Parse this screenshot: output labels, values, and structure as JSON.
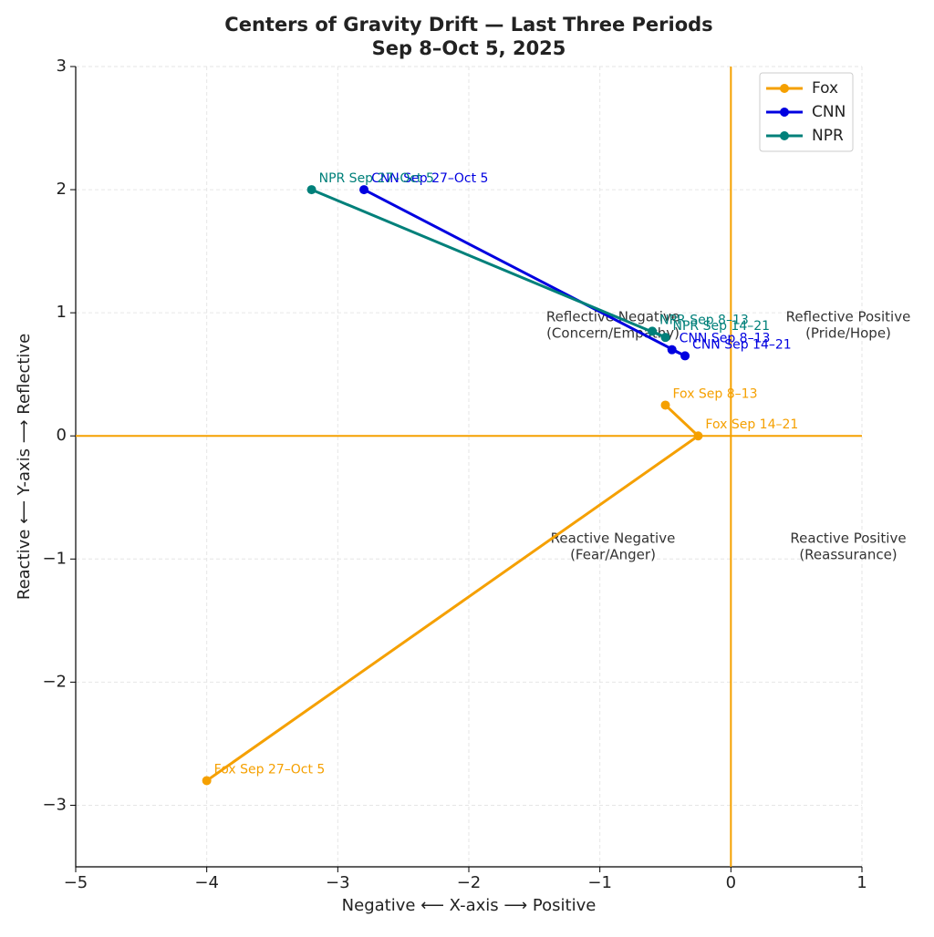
{
  "chart_data": {
    "type": "line",
    "title": "Centers of Gravity Drift — Last Three Periods",
    "subtitle": "Sep 8–Oct 5, 2025",
    "x_label": "Negative ⟵ X-axis ⟶ Positive",
    "y_label": "Reactive ⟵ Y-axis ⟶ Reflective",
    "xlim": [
      -5,
      1
    ],
    "ylim": [
      -3.5,
      3
    ],
    "xticks": [
      {
        "value": -5,
        "label": "−5"
      },
      {
        "value": -4,
        "label": "−4"
      },
      {
        "value": -3,
        "label": "−3"
      },
      {
        "value": -2,
        "label": "−2"
      },
      {
        "value": -1,
        "label": "−1"
      },
      0,
      1
    ],
    "yticks": [
      {
        "value": -3,
        "label": "−3"
      },
      {
        "value": -2,
        "label": "−2"
      },
      {
        "value": -1,
        "label": "−1"
      },
      0,
      1,
      2,
      3
    ],
    "grid": true,
    "legend": "upper right",
    "reference_lines": {
      "x": 0,
      "y": 0,
      "color": "#f5a000"
    },
    "series": [
      {
        "name": "Fox",
        "color": "#f5a000",
        "x": [
          -0.5,
          -0.25,
          -4
        ],
        "values": [
          0.25,
          0,
          -2.8
        ],
        "labels": [
          "Fox Sep 8–13",
          "Fox Sep 14–21",
          "Fox Sep 27–Oct 5"
        ]
      },
      {
        "name": "CNN",
        "color": "#0000e0",
        "x": [
          -0.45,
          -0.35,
          -2.8
        ],
        "values": [
          0.7,
          0.65,
          2.0
        ],
        "labels": [
          "CNN Sep 8–13",
          "CNN Sep 14–21",
          "CNN Sep 27–Oct 5"
        ]
      },
      {
        "name": "NPR",
        "color": "#00807a",
        "x": [
          -0.6,
          -0.5,
          -3.2
        ],
        "values": [
          0.85,
          0.8,
          2.0
        ],
        "labels": [
          "NPR Sep 8–13",
          "NPR Sep 14–21",
          "NPR Sep 27–Oct 5"
        ]
      }
    ],
    "annotations": [
      [
        "Reflective Negative",
        "(Concern/Empathy)"
      ],
      [
        "Reflective Positive",
        "(Pride/Hope)"
      ],
      [
        "Reactive Negative",
        "(Fear/Anger)"
      ],
      [
        "Reactive Positive",
        "(Reassurance)"
      ]
    ]
  }
}
